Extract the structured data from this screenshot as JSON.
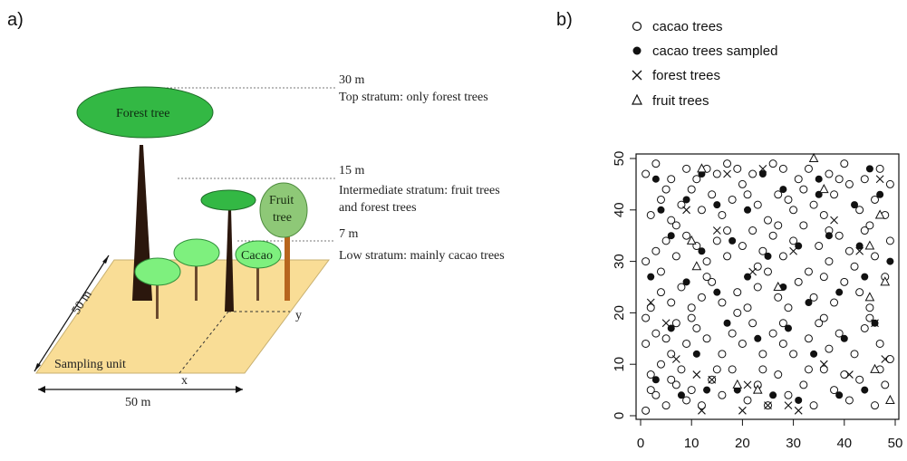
{
  "panel_a": {
    "label": "a)",
    "forest_tree": "Forest tree",
    "fruit_tree_line1": "Fruit",
    "fruit_tree_line2": "tree",
    "cacao": "Cacao",
    "stratum_top_height": "30 m",
    "stratum_top_desc": "Top stratum: only forest trees",
    "stratum_mid_height": "15 m",
    "stratum_mid_desc_line1": "Intermediate stratum: fruit trees",
    "stratum_mid_desc_line2": "and forest trees",
    "stratum_low_height": "7 m",
    "stratum_low_desc": "Low stratum: mainly cacao trees",
    "sampling_unit": "Sampling unit",
    "side_length": "50 m",
    "bottom_length": "50 m",
    "x_label": "x",
    "y_label": "y"
  },
  "panel_b": {
    "label": "b)",
    "legend": [
      {
        "symbol": "circle-open",
        "label": "cacao trees"
      },
      {
        "symbol": "circle-filled",
        "label": "cacao trees sampled"
      },
      {
        "symbol": "cross",
        "label": "forest trees"
      },
      {
        "symbol": "triangle",
        "label": "fruit trees"
      }
    ]
  },
  "chart_data": {
    "type": "scatter",
    "xlim": [
      0,
      50
    ],
    "ylim": [
      0,
      50
    ],
    "x_ticks": [
      0,
      10,
      20,
      30,
      40,
      50
    ],
    "y_ticks": [
      0,
      10,
      20,
      30,
      40,
      50
    ],
    "grid": false,
    "legend_position": "top",
    "series": [
      {
        "name": "cacao trees",
        "marker": "circle-open",
        "points": [
          [
            1,
            1
          ],
          [
            3,
            4
          ],
          [
            5,
            2
          ],
          [
            7,
            6
          ],
          [
            9,
            3
          ],
          [
            2,
            8
          ],
          [
            4,
            10
          ],
          [
            6,
            12
          ],
          [
            8,
            9
          ],
          [
            10,
            5
          ],
          [
            12,
            2
          ],
          [
            14,
            7
          ],
          [
            16,
            4
          ],
          [
            18,
            9
          ],
          [
            21,
            3
          ],
          [
            23,
            6
          ],
          [
            25,
            2
          ],
          [
            27,
            8
          ],
          [
            29,
            4
          ],
          [
            32,
            6
          ],
          [
            34,
            2
          ],
          [
            36,
            9
          ],
          [
            38,
            5
          ],
          [
            41,
            3
          ],
          [
            43,
            7
          ],
          [
            46,
            2
          ],
          [
            48,
            6
          ],
          [
            1,
            14
          ],
          [
            3,
            16
          ],
          [
            5,
            15
          ],
          [
            7,
            18
          ],
          [
            9,
            14
          ],
          [
            11,
            17
          ],
          [
            13,
            15
          ],
          [
            16,
            12
          ],
          [
            18,
            16
          ],
          [
            20,
            14
          ],
          [
            22,
            18
          ],
          [
            24,
            12
          ],
          [
            26,
            16
          ],
          [
            28,
            14
          ],
          [
            30,
            12
          ],
          [
            33,
            15
          ],
          [
            35,
            18
          ],
          [
            37,
            13
          ],
          [
            39,
            16
          ],
          [
            42,
            12
          ],
          [
            44,
            17
          ],
          [
            47,
            14
          ],
          [
            49,
            11
          ],
          [
            2,
            21
          ],
          [
            4,
            24
          ],
          [
            6,
            22
          ],
          [
            8,
            25
          ],
          [
            10,
            21
          ],
          [
            12,
            23
          ],
          [
            14,
            26
          ],
          [
            16,
            22
          ],
          [
            19,
            24
          ],
          [
            21,
            21
          ],
          [
            23,
            25
          ],
          [
            25,
            28
          ],
          [
            27,
            23
          ],
          [
            29,
            21
          ],
          [
            31,
            26
          ],
          [
            34,
            23
          ],
          [
            36,
            27
          ],
          [
            38,
            22
          ],
          [
            40,
            26
          ],
          [
            43,
            24
          ],
          [
            45,
            21
          ],
          [
            48,
            27
          ],
          [
            1,
            30
          ],
          [
            3,
            32
          ],
          [
            5,
            34
          ],
          [
            7,
            31
          ],
          [
            9,
            35
          ],
          [
            11,
            33
          ],
          [
            13,
            30
          ],
          [
            15,
            34
          ],
          [
            17,
            31
          ],
          [
            20,
            33
          ],
          [
            22,
            36
          ],
          [
            24,
            32
          ],
          [
            26,
            35
          ],
          [
            28,
            31
          ],
          [
            30,
            34
          ],
          [
            32,
            37
          ],
          [
            35,
            33
          ],
          [
            37,
            30
          ],
          [
            39,
            35
          ],
          [
            41,
            32
          ],
          [
            44,
            36
          ],
          [
            46,
            31
          ],
          [
            49,
            34
          ],
          [
            2,
            39
          ],
          [
            4,
            42
          ],
          [
            6,
            38
          ],
          [
            8,
            41
          ],
          [
            10,
            44
          ],
          [
            12,
            40
          ],
          [
            14,
            43
          ],
          [
            16,
            39
          ],
          [
            18,
            42
          ],
          [
            20,
            45
          ],
          [
            23,
            41
          ],
          [
            25,
            38
          ],
          [
            27,
            43
          ],
          [
            30,
            40
          ],
          [
            32,
            44
          ],
          [
            34,
            41
          ],
          [
            36,
            39
          ],
          [
            38,
            43
          ],
          [
            41,
            45
          ],
          [
            43,
            40
          ],
          [
            46,
            42
          ],
          [
            48,
            39
          ],
          [
            1,
            47
          ],
          [
            3,
            49
          ],
          [
            6,
            46
          ],
          [
            9,
            48
          ],
          [
            11,
            46
          ],
          [
            15,
            47
          ],
          [
            17,
            49
          ],
          [
            19,
            48
          ],
          [
            22,
            47
          ],
          [
            26,
            49
          ],
          [
            28,
            48
          ],
          [
            31,
            46
          ],
          [
            33,
            48
          ],
          [
            37,
            47
          ],
          [
            40,
            49
          ],
          [
            44,
            46
          ],
          [
            47,
            48
          ],
          [
            2,
            5
          ],
          [
            6,
            7
          ],
          [
            15,
            9
          ],
          [
            24,
            9
          ],
          [
            33,
            9
          ],
          [
            40,
            8
          ],
          [
            47,
            9
          ],
          [
            1,
            19
          ],
          [
            10,
            19
          ],
          [
            19,
            20
          ],
          [
            28,
            18
          ],
          [
            36,
            19
          ],
          [
            45,
            19
          ],
          [
            4,
            28
          ],
          [
            13,
            27
          ],
          [
            23,
            29
          ],
          [
            33,
            28
          ],
          [
            42,
            29
          ],
          [
            7,
            37
          ],
          [
            17,
            36
          ],
          [
            27,
            37
          ],
          [
            37,
            36
          ],
          [
            45,
            37
          ],
          [
            5,
            44
          ],
          [
            13,
            48
          ],
          [
            21,
            43
          ],
          [
            29,
            42
          ],
          [
            39,
            46
          ],
          [
            49,
            45
          ]
        ]
      },
      {
        "name": "cacao trees sampled",
        "marker": "circle-filled",
        "points": [
          [
            3,
            7
          ],
          [
            8,
            4
          ],
          [
            13,
            5
          ],
          [
            19,
            5
          ],
          [
            26,
            4
          ],
          [
            31,
            3
          ],
          [
            39,
            4
          ],
          [
            44,
            5
          ],
          [
            6,
            17
          ],
          [
            11,
            12
          ],
          [
            17,
            18
          ],
          [
            23,
            15
          ],
          [
            29,
            17
          ],
          [
            34,
            12
          ],
          [
            40,
            15
          ],
          [
            46,
            18
          ],
          [
            2,
            27
          ],
          [
            9,
            26
          ],
          [
            15,
            24
          ],
          [
            21,
            27
          ],
          [
            28,
            25
          ],
          [
            33,
            22
          ],
          [
            39,
            24
          ],
          [
            44,
            27
          ],
          [
            6,
            35
          ],
          [
            12,
            32
          ],
          [
            18,
            34
          ],
          [
            25,
            31
          ],
          [
            31,
            33
          ],
          [
            37,
            35
          ],
          [
            43,
            33
          ],
          [
            49,
            30
          ],
          [
            4,
            40
          ],
          [
            9,
            42
          ],
          [
            15,
            41
          ],
          [
            21,
            40
          ],
          [
            28,
            44
          ],
          [
            35,
            43
          ],
          [
            42,
            41
          ],
          [
            47,
            43
          ],
          [
            3,
            46
          ],
          [
            12,
            47
          ],
          [
            24,
            47
          ],
          [
            35,
            46
          ],
          [
            45,
            48
          ]
        ]
      },
      {
        "name": "forest trees",
        "marker": "cross",
        "points": [
          [
            2,
            22
          ],
          [
            12,
            1
          ],
          [
            20,
            1
          ],
          [
            21,
            6
          ],
          [
            23,
            5
          ],
          [
            25,
            2
          ],
          [
            29,
            2
          ],
          [
            31,
            1
          ],
          [
            36,
            10
          ],
          [
            5,
            18
          ],
          [
            7,
            11
          ],
          [
            11,
            8
          ],
          [
            15,
            36
          ],
          [
            22,
            28
          ],
          [
            30,
            32
          ],
          [
            38,
            38
          ],
          [
            43,
            32
          ],
          [
            47,
            46
          ],
          [
            24,
            48
          ],
          [
            17,
            47
          ],
          [
            9,
            40
          ],
          [
            41,
            8
          ],
          [
            46,
            18
          ],
          [
            48,
            11
          ],
          [
            14,
            7
          ]
        ]
      },
      {
        "name": "fruit trees",
        "marker": "triangle",
        "points": [
          [
            12,
            48
          ],
          [
            34,
            50
          ],
          [
            36,
            44
          ],
          [
            49,
            3
          ],
          [
            46,
            9
          ],
          [
            47,
            39
          ],
          [
            45,
            33
          ],
          [
            10,
            34
          ],
          [
            11,
            29
          ],
          [
            48,
            26
          ],
          [
            45,
            23
          ],
          [
            23,
            5
          ],
          [
            27,
            25
          ],
          [
            19,
            6
          ]
        ]
      }
    ]
  }
}
